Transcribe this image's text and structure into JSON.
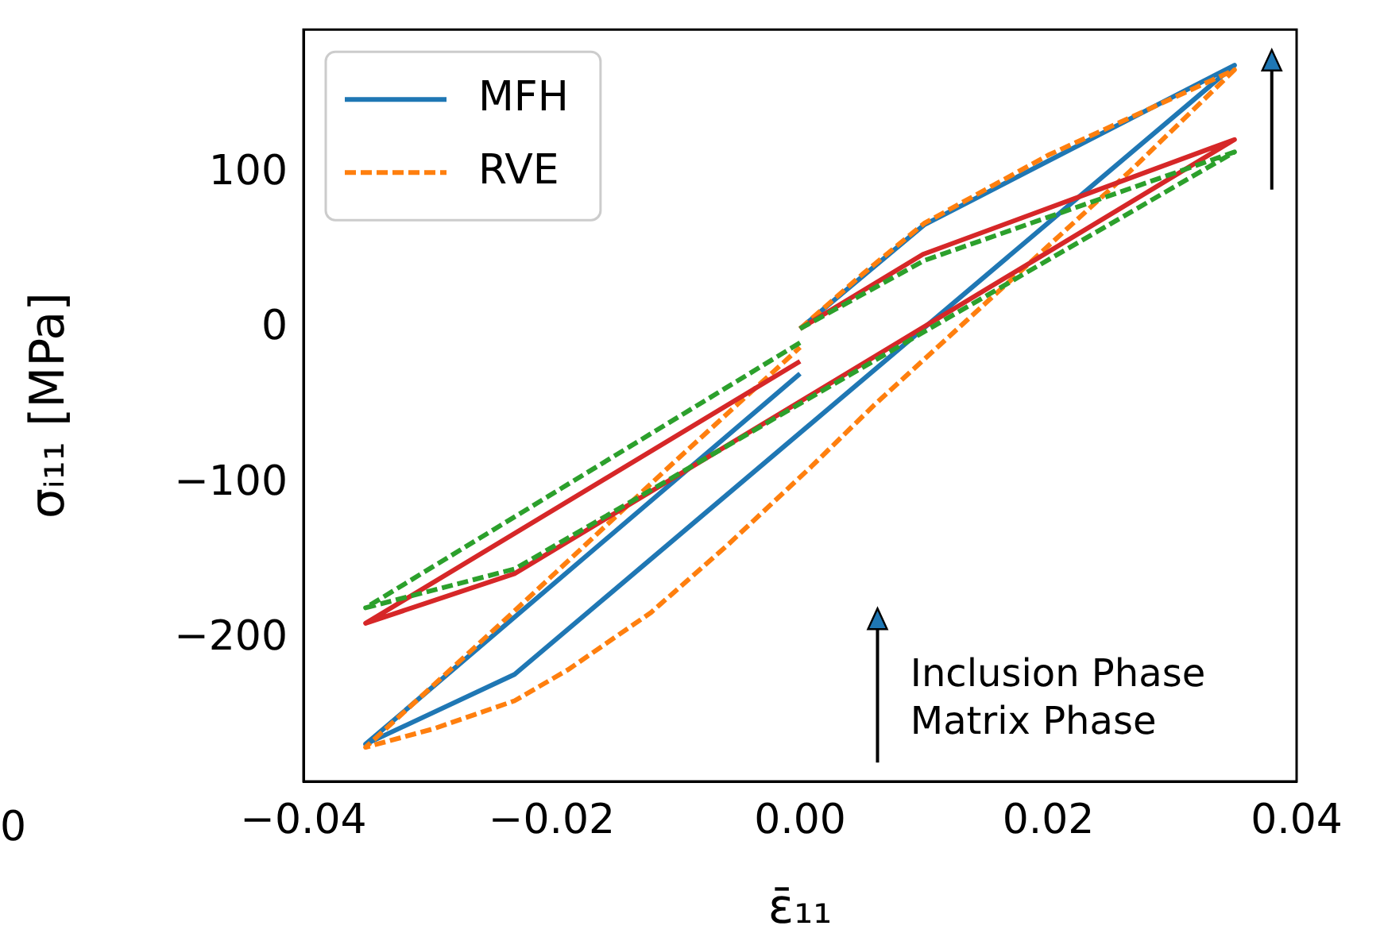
{
  "chart_data": {
    "type": "line",
    "xlabel": "ε̄₁₁",
    "ylabel": "σᵢ₁₁ [MPa]",
    "xlim": [
      -0.04,
      0.04
    ],
    "ylim": [
      -292,
      193
    ],
    "xticks": [
      {
        "value": -0.04,
        "label": "−0.04"
      },
      {
        "value": -0.02,
        "label": "−0.02"
      },
      {
        "value": 0,
        "label": "0.00"
      },
      {
        "value": 0.02,
        "label": "0.02"
      },
      {
        "value": 0.04,
        "label": "0.04"
      }
    ],
    "yticks": [
      {
        "value": -200,
        "label": "−200"
      },
      {
        "value": -100,
        "label": "−100"
      },
      0,
      100
    ],
    "grid": false,
    "legend": "top left",
    "marker": "none",
    "annotations": [
      "Inclusion Phase",
      "Matrix Phase",
      "0"
    ],
    "series": [
      {
        "name": "MFH",
        "color": "#1f77b4",
        "line_style": "solid",
        "x": [
          0,
          0.01,
          0.035,
          -0.023,
          -0.035,
          0
        ],
        "values": [
          0,
          67,
          170,
          -223,
          -268,
          -29
        ]
      },
      {
        "name": "RVE",
        "color": "#ff7f0e",
        "line_style": "dashed",
        "x": [
          0,
          0.005,
          0.01,
          0.02,
          0.035,
          0.0265,
          0.006,
          0.0009,
          -0.0059,
          -0.012,
          -0.0187,
          -0.023,
          -0.0295,
          -0.035,
          -0.023,
          -0.01,
          0
        ],
        "values": [
          0,
          35,
          68,
          112,
          167,
          101,
          -49,
          -89,
          -140,
          -183,
          -220,
          -240,
          -258,
          -270,
          -182,
          -85,
          -12
        ]
      },
      {
        "color": "#d62728",
        "line_style": "solid",
        "x": [
          0,
          0.0099,
          0.035,
          -0.023,
          -0.035,
          0
        ],
        "values": [
          0,
          48,
          122,
          -158,
          -190,
          -21
        ]
      },
      {
        "color": "#2ca02c",
        "line_style": "dashed",
        "x": [
          0,
          0.01,
          0.035,
          -0.023,
          -0.035,
          0
        ],
        "values": [
          0,
          44,
          114,
          -155,
          -180,
          -9
        ]
      }
    ]
  }
}
